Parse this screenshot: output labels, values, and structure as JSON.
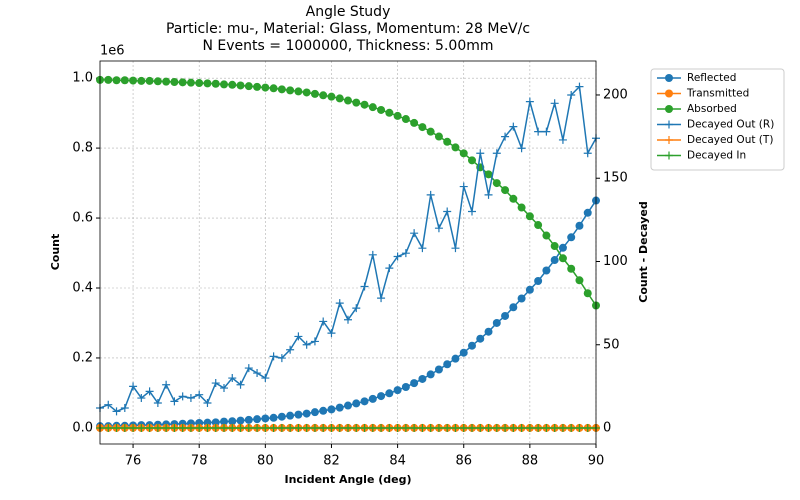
{
  "chart_data": {
    "type": "line",
    "title": "Angle Study",
    "subtitle": [
      "Particle: mu-, Material: Glass, Momentum: 28 MeV/c",
      "N Events = 1000000, Thickness: 5.00mm"
    ],
    "xlabel": "Incident Angle (deg)",
    "ylabel": "Count",
    "y2label": "Count - Decayed",
    "y2label_color": "#ff0000",
    "y_offset_label": "1e6",
    "grid": true,
    "legend": "outside upper right",
    "xlim": [
      75,
      90
    ],
    "xticks": [
      76,
      78,
      80,
      82,
      84,
      86,
      88,
      90
    ],
    "ylim": [
      -0.046,
      1.049
    ],
    "yticks": [
      {
        "value": 0,
        "label": "0.0"
      },
      {
        "value": 0.2,
        "label": "0.2"
      },
      {
        "value": 0.4,
        "label": "0.4"
      },
      {
        "value": 0.6,
        "label": "0.6"
      },
      {
        "value": 0.8,
        "label": "0.8"
      },
      {
        "value": 1,
        "label": "1.0"
      }
    ],
    "y2lim": [
      -9.6,
      220.4
    ],
    "y2ticks": [
      0,
      50,
      100,
      150,
      200
    ],
    "x": [
      75,
      75.25,
      75.5,
      75.75,
      76,
      76.25,
      76.5,
      76.75,
      77,
      77.25,
      77.5,
      77.75,
      78,
      78.25,
      78.5,
      78.75,
      79,
      79.25,
      79.5,
      79.75,
      80,
      80.25,
      80.5,
      80.75,
      81,
      81.25,
      81.5,
      81.75,
      82,
      82.25,
      82.5,
      82.75,
      83,
      83.25,
      83.5,
      83.75,
      84,
      84.25,
      84.5,
      84.75,
      85,
      85.25,
      85.5,
      85.75,
      86,
      86.25,
      86.5,
      86.75,
      87,
      87.25,
      87.5,
      87.75,
      88,
      88.25,
      88.5,
      88.75,
      89,
      89.25,
      89.5,
      89.75,
      90
    ],
    "series": [
      {
        "name": "Reflected",
        "color": "#1f77b4",
        "marker": "o",
        "axis": "y",
        "values": [
          0.005,
          0.005,
          0.006,
          0.006,
          0.007,
          0.008,
          0.008,
          0.009,
          0.01,
          0.011,
          0.012,
          0.013,
          0.014,
          0.015,
          0.016,
          0.018,
          0.019,
          0.021,
          0.023,
          0.025,
          0.027,
          0.029,
          0.032,
          0.035,
          0.038,
          0.041,
          0.045,
          0.049,
          0.053,
          0.058,
          0.064,
          0.07,
          0.076,
          0.083,
          0.091,
          0.099,
          0.108,
          0.117,
          0.128,
          0.14,
          0.153,
          0.167,
          0.182,
          0.198,
          0.215,
          0.235,
          0.255,
          0.275,
          0.3,
          0.32,
          0.345,
          0.37,
          0.395,
          0.42,
          0.45,
          0.48,
          0.515,
          0.545,
          0.578,
          0.615,
          0.65
        ]
      },
      {
        "name": "Transmitted",
        "color": "#ff7f0e",
        "marker": "o",
        "axis": "y",
        "values": [
          0,
          0,
          0,
          0,
          0,
          0,
          0,
          0,
          0,
          0,
          0,
          0,
          0,
          0,
          0,
          0,
          0,
          0,
          0,
          0,
          0,
          0,
          0,
          0,
          0,
          0,
          0,
          0,
          0,
          0,
          0,
          0,
          0,
          0,
          0,
          0,
          0,
          0,
          0,
          0,
          0,
          0,
          0,
          0,
          0,
          0,
          0,
          0,
          0,
          0,
          0,
          0,
          0,
          0,
          0,
          0,
          0,
          0,
          0,
          0,
          0
        ]
      },
      {
        "name": "Absorbed",
        "color": "#2ca02c",
        "marker": "o",
        "axis": "y",
        "values": [
          0.995,
          0.995,
          0.994,
          0.994,
          0.993,
          0.992,
          0.992,
          0.991,
          0.99,
          0.989,
          0.988,
          0.987,
          0.986,
          0.985,
          0.984,
          0.982,
          0.981,
          0.979,
          0.977,
          0.975,
          0.973,
          0.971,
          0.968,
          0.965,
          0.962,
          0.959,
          0.955,
          0.951,
          0.947,
          0.942,
          0.936,
          0.93,
          0.924,
          0.917,
          0.909,
          0.901,
          0.892,
          0.883,
          0.872,
          0.86,
          0.847,
          0.833,
          0.818,
          0.802,
          0.785,
          0.765,
          0.745,
          0.725,
          0.7,
          0.68,
          0.655,
          0.63,
          0.605,
          0.58,
          0.55,
          0.52,
          0.485,
          0.455,
          0.422,
          0.385,
          0.35
        ]
      },
      {
        "name": "Decayed Out (R)",
        "color": "#1f77b4",
        "marker": "+",
        "axis": "y2",
        "values": [
          12,
          14,
          10,
          12,
          25,
          18,
          22,
          15,
          26,
          16,
          19,
          18,
          20,
          15,
          27,
          24,
          30,
          26,
          36,
          33,
          30,
          43,
          42,
          47,
          55,
          50,
          52,
          64,
          57,
          75,
          65,
          72,
          85,
          104,
          78,
          96,
          103,
          105,
          117,
          108,
          140,
          120,
          130,
          108,
          145,
          130,
          165,
          140,
          165,
          175,
          181,
          168,
          196,
          178,
          178,
          195,
          173,
          200,
          205,
          165,
          174
        ]
      },
      {
        "name": "Decayed Out (T)",
        "color": "#ff7f0e",
        "marker": "+",
        "axis": "y2",
        "values": [
          0,
          0,
          0,
          0,
          0,
          0,
          0,
          0,
          0,
          0,
          0,
          0,
          0,
          0,
          0,
          0,
          0,
          0,
          0,
          0,
          0,
          0,
          0,
          0,
          0,
          0,
          0,
          0,
          0,
          0,
          0,
          0,
          0,
          0,
          0,
          0,
          0,
          0,
          0,
          0,
          0,
          0,
          0,
          0,
          0,
          0,
          0,
          0,
          0,
          0,
          0,
          0,
          0,
          0,
          0,
          0,
          0,
          0,
          0,
          0,
          0
        ]
      },
      {
        "name": "Decayed In",
        "color": "#2ca02c",
        "marker": "+",
        "axis": "y2",
        "values": [
          0,
          0,
          0,
          0,
          0,
          0,
          0,
          0,
          0,
          0,
          0,
          0,
          0,
          0,
          0,
          0,
          0,
          0,
          0,
          0,
          0,
          0,
          0,
          0,
          0,
          0,
          0,
          0,
          0,
          0,
          0,
          0,
          0,
          0,
          0,
          0,
          0,
          0,
          0,
          0,
          0,
          0,
          0,
          0,
          0,
          0,
          0,
          0,
          0,
          0,
          0,
          0,
          0,
          0,
          0,
          0,
          0,
          0,
          0,
          0,
          0
        ]
      }
    ]
  }
}
